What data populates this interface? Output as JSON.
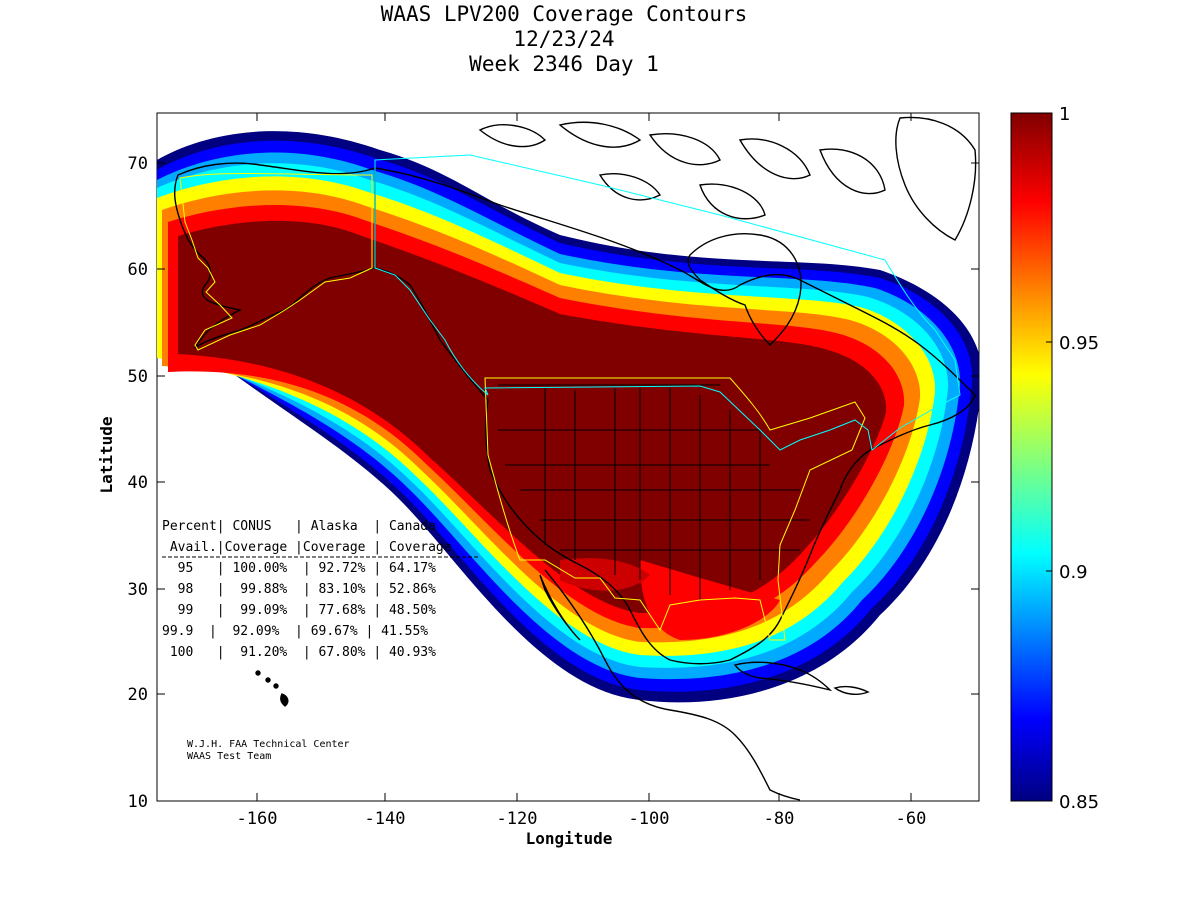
{
  "title": {
    "line1": "WAAS LPV200 Coverage Contours",
    "line2": "12/23/24",
    "line3": "Week 2346 Day 1"
  },
  "axes": {
    "xlabel": "Longitude",
    "ylabel": "Latitude",
    "xlim": [
      -175,
      -50
    ],
    "ylim": [
      10,
      75
    ],
    "xticks": [
      "-160",
      "-140",
      "-120",
      "-100",
      "-80",
      "-60"
    ],
    "yticks": [
      "10",
      "20",
      "30",
      "40",
      "50",
      "60",
      "70"
    ]
  },
  "colorbar": {
    "min": 0.85,
    "max": 1,
    "ticks": [
      "1",
      "0.95",
      "0.9",
      "0.85"
    ],
    "colormap": "jet"
  },
  "table": {
    "header1": "Percent| CONUS   | Alaska  | Canada",
    "header2": " Avail.|Coverage |Coverage | Coverage",
    "rows": [
      {
        "avail": "95",
        "conus": "100.00%",
        "alaska": "92.72%",
        "canada": "64.17%"
      },
      {
        "avail": "98",
        "conus": "99.88%",
        "alaska": "83.10%",
        "canada": "52.86%"
      },
      {
        "avail": "99",
        "conus": "99.09%",
        "alaska": "77.68%",
        "canada": "48.50%"
      },
      {
        "avail": "99.9",
        "conus": "92.09%",
        "alaska": "69.67%",
        "canada": "41.55%"
      },
      {
        "avail": "100",
        "conus": "91.20%",
        "alaska": "67.80%",
        "canada": "40.93%"
      }
    ]
  },
  "credit": {
    "line1": "W.J.H. FAA Technical Center",
    "line2": "WAAS Test Team"
  },
  "chart_data": {
    "type": "heatmap",
    "title": "WAAS LPV200 Coverage Contours",
    "subtitle": "12/23/24 Week 2346 Day 1",
    "xlabel": "Longitude",
    "ylabel": "Latitude",
    "xlim": [
      -175,
      -50
    ],
    "ylim": [
      10,
      75
    ],
    "value_range": [
      0.85,
      1
    ],
    "grid": false
  },
  "colors": {
    "contour_max": "#800000",
    "contour_high": "#ff0000",
    "contour_mid_high": "#ff8000",
    "contour_mid": "#ffff00",
    "contour_mid_low": "#00ffff",
    "contour_low": "#0000ff",
    "contour_min": "#000080",
    "coastline": "#000000",
    "service_area_conus": "#ffff00",
    "service_area_canada": "#00ffff"
  }
}
